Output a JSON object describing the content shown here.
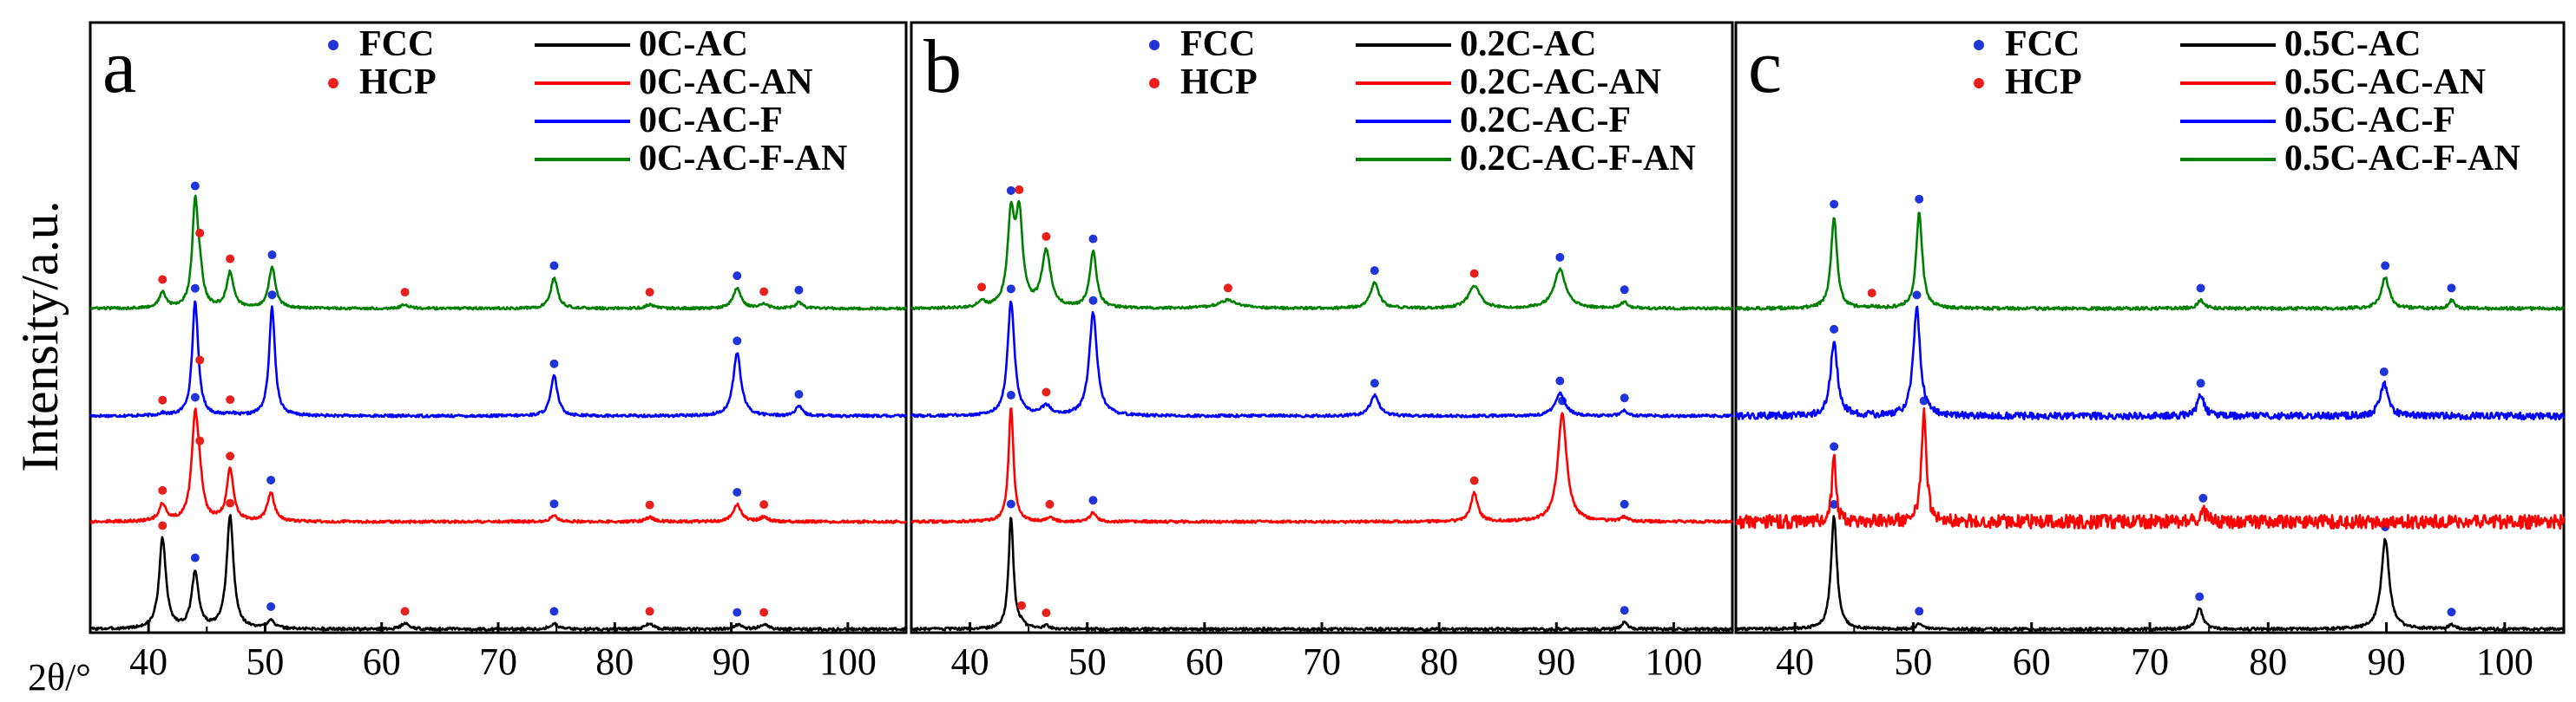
{
  "figure": {
    "ylabel": "Intensity/a.u.",
    "xlabel": "2θ/°"
  },
  "colors": {
    "FCC": "#1f35d8",
    "HCP": "#e8201c",
    "series": [
      "#000000",
      "#ff0000",
      "#0000ff",
      "#008000"
    ]
  },
  "chart_data": [
    {
      "type": "line",
      "panel": "a",
      "xlim": [
        35,
        105
      ],
      "xticks": [
        40,
        50,
        60,
        70,
        80,
        90,
        100
      ],
      "marker_legend": [
        "FCC",
        "HCP"
      ],
      "series": [
        {
          "name": "0C-AC",
          "peaks": [
            {
              "x": 41.2,
              "h": 0.8,
              "w": 0.35,
              "marker": "HCP"
            },
            {
              "x": 44.0,
              "h": 0.5,
              "w": 0.35,
              "marker": "FCC"
            },
            {
              "x": 47.0,
              "h": 1.0,
              "w": 0.35,
              "marker": "HCP"
            },
            {
              "x": 50.5,
              "h": 0.08,
              "w": 0.35,
              "marker": "FCC"
            },
            {
              "x": 62.0,
              "h": 0.05,
              "w": 0.4,
              "marker": "HCP"
            },
            {
              "x": 74.8,
              "h": 0.05,
              "w": 0.4,
              "marker": "FCC"
            },
            {
              "x": 83.0,
              "h": 0.05,
              "w": 0.4,
              "marker": "HCP"
            },
            {
              "x": 90.5,
              "h": 0.04,
              "w": 0.4,
              "marker": "FCC"
            },
            {
              "x": 92.8,
              "h": 0.04,
              "w": 0.4,
              "marker": "HCP"
            }
          ]
        },
        {
          "name": "0C-AC-AN",
          "peaks": [
            {
              "x": 41.2,
              "h": 0.15,
              "w": 0.35,
              "marker": "HCP"
            },
            {
              "x": 44.0,
              "h": 0.9,
              "w": 0.35,
              "marker": "FCC"
            },
            {
              "x": 44.4,
              "h": 0.2,
              "w": 0.3,
              "marker": "HCP"
            },
            {
              "x": 47.0,
              "h": 0.45,
              "w": 0.35,
              "marker": "HCP"
            },
            {
              "x": 50.5,
              "h": 0.25,
              "w": 0.35,
              "marker": "FCC"
            },
            {
              "x": 74.8,
              "h": 0.05,
              "w": 0.4,
              "marker": "FCC"
            },
            {
              "x": 83.0,
              "h": 0.04,
              "w": 0.4,
              "marker": "HCP"
            },
            {
              "x": 90.5,
              "h": 0.15,
              "w": 0.4,
              "marker": "FCC"
            },
            {
              "x": 92.8,
              "h": 0.04,
              "w": 0.4,
              "marker": "HCP"
            }
          ]
        },
        {
          "name": "0C-AC-F",
          "peaks": [
            {
              "x": 41.2,
              "h": 0.02,
              "w": 0.35,
              "marker": "HCP"
            },
            {
              "x": 44.0,
              "h": 1.0,
              "w": 0.3,
              "marker": "FCC"
            },
            {
              "x": 44.4,
              "h": 0.02,
              "w": 0.3,
              "marker": "HCP"
            },
            {
              "x": 47.0,
              "h": 0.02,
              "w": 0.35,
              "marker": "HCP"
            },
            {
              "x": 50.6,
              "h": 0.95,
              "w": 0.3,
              "marker": "FCC"
            },
            {
              "x": 74.8,
              "h": 0.35,
              "w": 0.35,
              "marker": "FCC"
            },
            {
              "x": 90.5,
              "h": 0.55,
              "w": 0.4,
              "marker": "FCC"
            },
            {
              "x": 95.8,
              "h": 0.08,
              "w": 0.35,
              "marker": "FCC"
            }
          ]
        },
        {
          "name": "0C-AC-F-AN",
          "peaks": [
            {
              "x": 41.2,
              "h": 0.15,
              "w": 0.35,
              "marker": "HCP"
            },
            {
              "x": 44.0,
              "h": 1.0,
              "w": 0.3,
              "marker": "FCC"
            },
            {
              "x": 44.4,
              "h": 0.25,
              "w": 0.3,
              "marker": "HCP"
            },
            {
              "x": 47.0,
              "h": 0.35,
              "w": 0.35,
              "marker": "HCP"
            },
            {
              "x": 50.6,
              "h": 0.4,
              "w": 0.35,
              "marker": "FCC"
            },
            {
              "x": 62.0,
              "h": 0.04,
              "w": 0.4,
              "marker": "HCP"
            },
            {
              "x": 74.8,
              "h": 0.3,
              "w": 0.35,
              "marker": "FCC"
            },
            {
              "x": 83.0,
              "h": 0.04,
              "w": 0.4,
              "marker": "HCP"
            },
            {
              "x": 90.5,
              "h": 0.2,
              "w": 0.4,
              "marker": "FCC"
            },
            {
              "x": 92.8,
              "h": 0.04,
              "w": 0.4,
              "marker": "HCP"
            },
            {
              "x": 95.8,
              "h": 0.06,
              "w": 0.35,
              "marker": "FCC"
            }
          ]
        }
      ]
    },
    {
      "type": "line",
      "panel": "b",
      "xlim": [
        35,
        105
      ],
      "xticks": [
        40,
        50,
        60,
        70,
        80,
        90,
        100
      ],
      "marker_legend": [
        "FCC",
        "HCP"
      ],
      "series": [
        {
          "name": "0.2C-AC",
          "peaks": [
            {
              "x": 43.5,
              "h": 1.0,
              "w": 0.25,
              "marker": "FCC"
            },
            {
              "x": 44.4,
              "h": 0.03,
              "w": 0.3,
              "marker": "HCP"
            },
            {
              "x": 46.5,
              "h": 0.03,
              "w": 0.3,
              "marker": "HCP"
            },
            {
              "x": 95.8,
              "h": 0.06,
              "w": 0.3,
              "marker": "FCC"
            }
          ]
        },
        {
          "name": "0.2C-AC-AN",
          "peaks": [
            {
              "x": 43.5,
              "h": 1.0,
              "w": 0.25,
              "marker": "FCC"
            },
            {
              "x": 46.8,
              "h": 0.04,
              "w": 0.3,
              "marker": "HCP"
            },
            {
              "x": 50.5,
              "h": 0.08,
              "w": 0.3,
              "marker": "FCC"
            },
            {
              "x": 83.0,
              "h": 0.25,
              "w": 0.35,
              "marker": "HCP"
            },
            {
              "x": 90.5,
              "h": 0.95,
              "w": 0.45,
              "marker": "FCC"
            },
            {
              "x": 95.8,
              "h": 0.04,
              "w": 0.3,
              "marker": "FCC"
            }
          ]
        },
        {
          "name": "0.2C-AC-F",
          "peaks": [
            {
              "x": 43.5,
              "h": 1.0,
              "w": 0.35,
              "marker": "FCC"
            },
            {
              "x": 46.5,
              "h": 0.08,
              "w": 0.5,
              "marker": "HCP"
            },
            {
              "x": 50.5,
              "h": 0.9,
              "w": 0.4,
              "marker": "FCC"
            },
            {
              "x": 74.5,
              "h": 0.18,
              "w": 0.45,
              "marker": "FCC"
            },
            {
              "x": 90.3,
              "h": 0.2,
              "w": 0.5,
              "marker": "FCC"
            },
            {
              "x": 95.8,
              "h": 0.05,
              "w": 0.3,
              "marker": "FCC"
            }
          ]
        },
        {
          "name": "0.2C-AC-F-AN",
          "peaks": [
            {
              "x": 41.0,
              "h": 0.06,
              "w": 0.35,
              "marker": "HCP"
            },
            {
              "x": 43.5,
              "h": 0.85,
              "w": 0.35,
              "marker": "FCC"
            },
            {
              "x": 44.2,
              "h": 0.85,
              "w": 0.35,
              "marker": "HCP"
            },
            {
              "x": 46.5,
              "h": 0.55,
              "w": 0.45,
              "marker": "HCP"
            },
            {
              "x": 50.5,
              "h": 0.55,
              "w": 0.35,
              "marker": "FCC"
            },
            {
              "x": 62.0,
              "h": 0.08,
              "w": 1.0,
              "marker": "HCP"
            },
            {
              "x": 74.5,
              "h": 0.25,
              "w": 0.45,
              "marker": "FCC"
            },
            {
              "x": 83.0,
              "h": 0.22,
              "w": 0.6,
              "marker": "HCP"
            },
            {
              "x": 90.3,
              "h": 0.38,
              "w": 0.6,
              "marker": "FCC"
            },
            {
              "x": 95.8,
              "h": 0.06,
              "w": 0.35,
              "marker": "FCC"
            }
          ]
        }
      ]
    },
    {
      "type": "line",
      "panel": "c",
      "xlim": [
        35,
        105
      ],
      "xticks": [
        40,
        50,
        60,
        70,
        80,
        90,
        100
      ],
      "marker_legend": [
        "FCC",
        "HCP"
      ],
      "series": [
        {
          "name": "0.5C-AC",
          "peaks": [
            {
              "x": 43.3,
              "h": 1.0,
              "w": 0.3,
              "marker": "FCC"
            },
            {
              "x": 50.5,
              "h": 0.05,
              "w": 0.3,
              "marker": "FCC"
            },
            {
              "x": 74.2,
              "h": 0.18,
              "w": 0.35,
              "marker": "FCC"
            },
            {
              "x": 89.9,
              "h": 0.8,
              "w": 0.4,
              "marker": "FCC"
            },
            {
              "x": 95.5,
              "h": 0.04,
              "w": 0.3,
              "marker": "FCC"
            }
          ]
        },
        {
          "name": "0.5C-AC-AN",
          "noise": 0.06,
          "peaks": [
            {
              "x": 43.3,
              "h": 0.55,
              "w": 0.2,
              "marker": "FCC"
            },
            {
              "x": 50.9,
              "h": 0.95,
              "w": 0.25,
              "marker": "FCC"
            },
            {
              "x": 74.5,
              "h": 0.1,
              "w": 0.3,
              "marker": "FCC"
            }
          ]
        },
        {
          "name": "0.5C-AC-F",
          "noise": 0.03,
          "peaks": [
            {
              "x": 43.3,
              "h": 0.65,
              "w": 0.35,
              "marker": "FCC"
            },
            {
              "x": 50.3,
              "h": 0.95,
              "w": 0.35,
              "marker": "FCC"
            },
            {
              "x": 74.3,
              "h": 0.18,
              "w": 0.35,
              "marker": "FCC"
            },
            {
              "x": 89.8,
              "h": 0.28,
              "w": 0.4,
              "marker": "FCC"
            }
          ]
        },
        {
          "name": "0.5C-AC-F-AN",
          "noise": 0.015,
          "peaks": [
            {
              "x": 43.3,
              "h": 0.9,
              "w": 0.3,
              "marker": "FCC"
            },
            {
              "x": 46.5,
              "h": 0.02,
              "w": 0.3,
              "marker": "HCP"
            },
            {
              "x": 50.5,
              "h": 0.95,
              "w": 0.3,
              "marker": "FCC"
            },
            {
              "x": 74.3,
              "h": 0.08,
              "w": 0.35,
              "marker": "FCC"
            },
            {
              "x": 89.9,
              "h": 0.3,
              "w": 0.4,
              "marker": "FCC"
            },
            {
              "x": 95.5,
              "h": 0.08,
              "w": 0.3,
              "marker": "FCC"
            }
          ]
        }
      ]
    }
  ]
}
